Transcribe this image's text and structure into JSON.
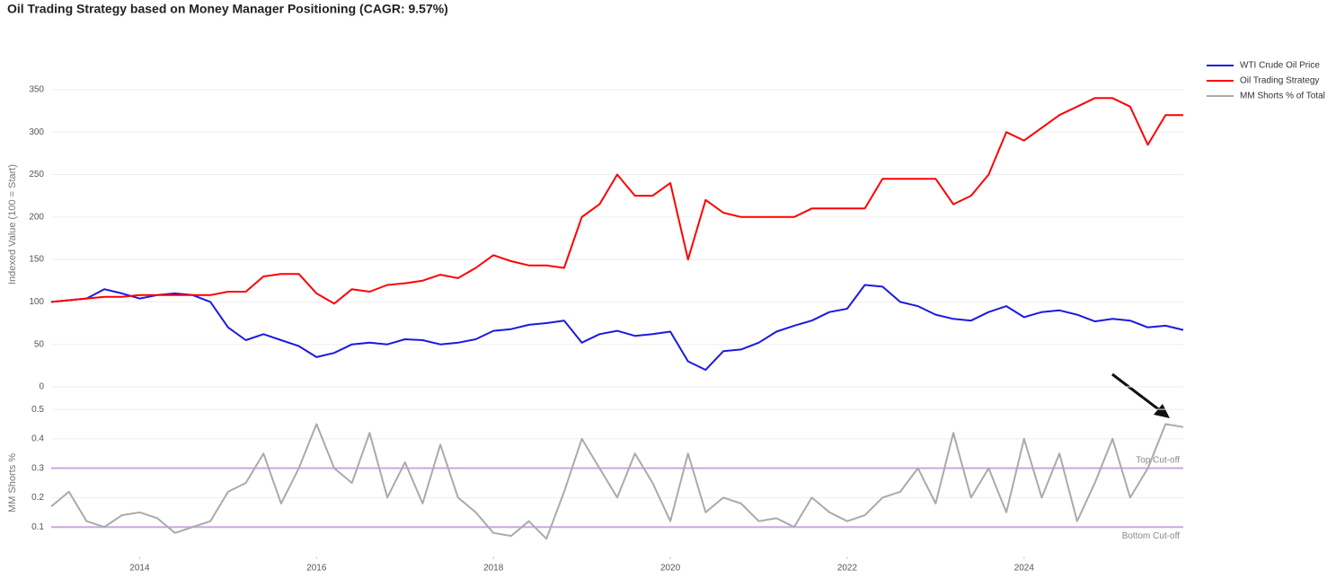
{
  "chart_data": [
    {
      "type": "line",
      "title": "Oil Trading Strategy based on Money Manager Positioning (CAGR: 9.57%)",
      "ylabel": "Indexed Value (100 = Start)",
      "x": [
        2013.0,
        2013.2,
        2013.4,
        2013.6,
        2013.8,
        2014.0,
        2014.2,
        2014.4,
        2014.6,
        2014.8,
        2015.0,
        2015.2,
        2015.4,
        2015.6,
        2015.8,
        2016.0,
        2016.2,
        2016.4,
        2016.6,
        2016.8,
        2017.0,
        2017.2,
        2017.4,
        2017.6,
        2017.8,
        2018.0,
        2018.2,
        2018.4,
        2018.6,
        2018.8,
        2019.0,
        2019.2,
        2019.4,
        2019.6,
        2019.8,
        2020.0,
        2020.2,
        2020.4,
        2020.6,
        2020.8,
        2021.0,
        2021.2,
        2021.4,
        2021.6,
        2021.8,
        2022.0,
        2022.2,
        2022.4,
        2022.6,
        2022.8,
        2023.0,
        2023.2,
        2023.4,
        2023.6,
        2023.8,
        2024.0,
        2024.2,
        2024.4,
        2024.6,
        2024.8,
        2025.0,
        2025.2,
        2025.4,
        2025.6,
        2025.8
      ],
      "series": [
        {
          "name": "WTI Crude Oil Price",
          "color": "#1a1adf",
          "values": [
            100,
            102,
            104,
            115,
            110,
            104,
            108,
            110,
            108,
            100,
            70,
            55,
            62,
            55,
            48,
            35,
            40,
            50,
            52,
            50,
            56,
            55,
            50,
            52,
            56,
            66,
            68,
            73,
            75,
            78,
            52,
            62,
            66,
            60,
            62,
            65,
            30,
            20,
            42,
            44,
            52,
            65,
            72,
            78,
            88,
            92,
            120,
            118,
            100,
            95,
            85,
            80,
            78,
            88,
            95,
            82,
            88,
            90,
            85,
            77,
            80,
            78,
            70,
            72,
            67
          ]
        },
        {
          "name": "Oil Trading Strategy",
          "color": "#ff0000",
          "values": [
            100,
            102,
            104,
            106,
            106,
            108,
            108,
            108,
            108,
            108,
            112,
            112,
            130,
            133,
            133,
            110,
            98,
            115,
            112,
            120,
            122,
            125,
            132,
            128,
            140,
            155,
            148,
            143,
            143,
            140,
            200,
            215,
            250,
            225,
            225,
            240,
            150,
            220,
            205,
            200,
            200,
            200,
            200,
            210,
            210,
            210,
            210,
            245,
            245,
            245,
            245,
            215,
            225,
            250,
            300,
            290,
            305,
            320,
            330,
            340,
            340,
            330,
            285,
            320,
            320
          ]
        }
      ],
      "xlim": [
        2013.0,
        2025.8
      ],
      "ylim": [
        0,
        390
      ],
      "yticks": [
        0,
        50,
        100,
        150,
        200,
        250,
        300,
        350
      ],
      "grid": true
    },
    {
      "type": "line",
      "ylabel": "MM Shorts %",
      "x": [
        2013.0,
        2013.2,
        2013.4,
        2013.6,
        2013.8,
        2014.0,
        2014.2,
        2014.4,
        2014.6,
        2014.8,
        2015.0,
        2015.2,
        2015.4,
        2015.6,
        2015.8,
        2016.0,
        2016.2,
        2016.4,
        2016.6,
        2016.8,
        2017.0,
        2017.2,
        2017.4,
        2017.6,
        2017.8,
        2018.0,
        2018.2,
        2018.4,
        2018.6,
        2018.8,
        2019.0,
        2019.2,
        2019.4,
        2019.6,
        2019.8,
        2020.0,
        2020.2,
        2020.4,
        2020.6,
        2020.8,
        2021.0,
        2021.2,
        2021.4,
        2021.6,
        2021.8,
        2022.0,
        2022.2,
        2022.4,
        2022.6,
        2022.8,
        2023.0,
        2023.2,
        2023.4,
        2023.6,
        2023.8,
        2024.0,
        2024.2,
        2024.4,
        2024.6,
        2024.8,
        2025.0,
        2025.2,
        2025.4,
        2025.6,
        2025.8
      ],
      "series": [
        {
          "name": "MM Shorts % of Total",
          "color": "#aaaaaa",
          "values": [
            0.17,
            0.22,
            0.12,
            0.1,
            0.14,
            0.15,
            0.13,
            0.08,
            0.1,
            0.12,
            0.22,
            0.25,
            0.35,
            0.18,
            0.3,
            0.45,
            0.3,
            0.25,
            0.42,
            0.2,
            0.32,
            0.18,
            0.38,
            0.2,
            0.15,
            0.08,
            0.07,
            0.12,
            0.06,
            0.22,
            0.4,
            0.3,
            0.2,
            0.35,
            0.25,
            0.12,
            0.35,
            0.15,
            0.2,
            0.18,
            0.12,
            0.13,
            0.1,
            0.2,
            0.15,
            0.12,
            0.14,
            0.2,
            0.22,
            0.3,
            0.18,
            0.42,
            0.2,
            0.3,
            0.15,
            0.4,
            0.2,
            0.35,
            0.12,
            0.25,
            0.4,
            0.2,
            0.3,
            0.45,
            0.44
          ]
        }
      ],
      "hlines": [
        {
          "value": 0.3,
          "label": "Top Cut-off",
          "color": "#c9a8e0"
        },
        {
          "value": 0.1,
          "label": "Bottom Cut-off",
          "color": "#c9a8e0"
        }
      ],
      "xlim": [
        2013.0,
        2025.8
      ],
      "xticks": [
        2014,
        2016,
        2018,
        2020,
        2022,
        2024
      ],
      "ylim": [
        0,
        0.54
      ],
      "yticks": [
        0.1,
        0.2,
        0.3,
        0.4,
        0.5
      ],
      "grid": true
    }
  ]
}
